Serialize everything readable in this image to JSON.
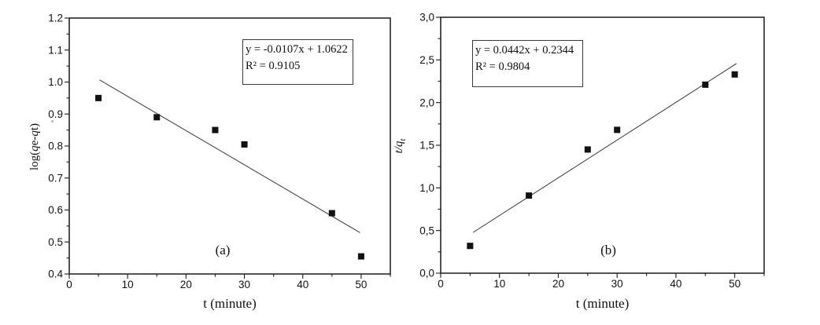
{
  "figure": {
    "background": "#ffffff",
    "axis_color": "#1a1a1a",
    "text_color": "#111111"
  },
  "chart_data": [
    {
      "panel_id": "a",
      "panel_label": "(a)",
      "type": "scatter",
      "title": "",
      "xlabel": "t (minute)",
      "ylabel": "log(qe-qt)",
      "ylabel_parts": [
        {
          "text": "log(",
          "italic": false
        },
        {
          "text": "q",
          "italic": true
        },
        {
          "text": "e-",
          "italic": false
        },
        {
          "text": "q",
          "italic": true
        },
        {
          "text": "t)",
          "italic": false
        }
      ],
      "x": [
        5,
        15,
        25,
        30,
        45,
        50
      ],
      "y": [
        0.95,
        0.89,
        0.85,
        0.805,
        0.59,
        0.455
      ],
      "trendline": {
        "slope": -0.0107,
        "intercept": 1.0622,
        "x_start": 5.2,
        "x_end": 49.8
      },
      "annotation": {
        "equation": "y = -0.0107x + 1.0622",
        "r_squared": "R² = 0.9105"
      },
      "xlim": [
        0,
        55
      ],
      "ylim": [
        0.4,
        1.2
      ],
      "x_tick_values": [
        0,
        10,
        20,
        30,
        40,
        50
      ],
      "x_tick_labels": [
        "0",
        "10",
        "20",
        "30",
        "40",
        "50"
      ],
      "x_minor_step": 5,
      "y_tick_values": [
        1.2,
        1.1,
        1.0,
        0.9,
        0.8,
        0.7,
        0.6,
        0.5,
        0.4
      ],
      "y_tick_labels": [
        "1.2",
        "1.1",
        "1.0",
        "0.9",
        "0.8",
        "0.7",
        "0.6",
        "0.5",
        "0.4"
      ],
      "y_minor_step": 0.05,
      "decimal_separator": ".",
      "grid": false,
      "legend": "none",
      "marker": "filled-square",
      "marker_color": "#111111",
      "line_color": "#333333"
    },
    {
      "panel_id": "b",
      "panel_label": "(b)",
      "type": "scatter",
      "title": "",
      "xlabel": "t (minute)",
      "ylabel": "t/qt",
      "ylabel_parts": [
        {
          "text": "t/q",
          "italic": true
        },
        {
          "text": "t",
          "italic": true,
          "sub": true
        }
      ],
      "x": [
        5,
        15,
        25,
        30,
        45,
        50
      ],
      "y": [
        0.32,
        0.91,
        1.45,
        1.68,
        2.21,
        2.33
      ],
      "trendline": {
        "slope": 0.0442,
        "intercept": 0.2344,
        "x_start": 5.5,
        "x_end": 50.3
      },
      "annotation": {
        "equation": "y = 0.0442x + 0.2344",
        "r_squared": "R² = 0.9804"
      },
      "xlim": [
        0,
        55
      ],
      "ylim": [
        0.0,
        3.0
      ],
      "x_tick_values": [
        0,
        10,
        20,
        30,
        40,
        50
      ],
      "x_tick_labels": [
        "0",
        "10",
        "20",
        "30",
        "40",
        "50"
      ],
      "x_minor_step": 5,
      "y_tick_values": [
        3.0,
        2.5,
        2.0,
        1.5,
        1.0,
        0.5,
        0.0
      ],
      "y_tick_labels": [
        "3,0",
        "2,5",
        "2,0",
        "1,5",
        "1,0",
        "0,5",
        "0,0"
      ],
      "y_minor_step": 0.25,
      "decimal_separator": ",",
      "grid": false,
      "legend": "none",
      "marker": "filled-square",
      "marker_color": "#111111",
      "line_color": "#333333"
    }
  ]
}
